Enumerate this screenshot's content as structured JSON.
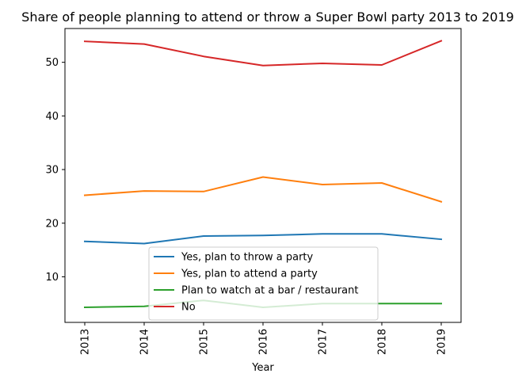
{
  "chart_data": {
    "type": "line",
    "title": "Share of people planning to attend or throw a Super Bowl party 2013 to 2019",
    "xlabel": "Year",
    "ylabel": "",
    "x": [
      "2013",
      "2014",
      "2015",
      "2016",
      "2017",
      "2018",
      "2019"
    ],
    "ylim": [
      1.5,
      56.3
    ],
    "yticks": [
      10,
      20,
      30,
      40,
      50
    ],
    "grid": false,
    "legend_position": "lower center",
    "series": [
      {
        "name": "Yes, plan to throw a party",
        "color": "#1f77b4",
        "values": [
          16.6,
          16.2,
          17.6,
          17.7,
          18.0,
          18.0,
          17.0
        ]
      },
      {
        "name": "Yes, plan to attend a party",
        "color": "#ff7f0e",
        "values": [
          25.2,
          26.0,
          25.9,
          28.6,
          27.2,
          27.5,
          24.0
        ]
      },
      {
        "name": "Plan to watch at a bar / restaurant",
        "color": "#2ca02c",
        "values": [
          4.3,
          4.5,
          5.6,
          4.3,
          5.0,
          5.0,
          5.0
        ]
      },
      {
        "name": "No",
        "color": "#d62728",
        "values": [
          53.9,
          53.4,
          51.1,
          49.4,
          49.8,
          49.5,
          54.0
        ]
      }
    ]
  }
}
